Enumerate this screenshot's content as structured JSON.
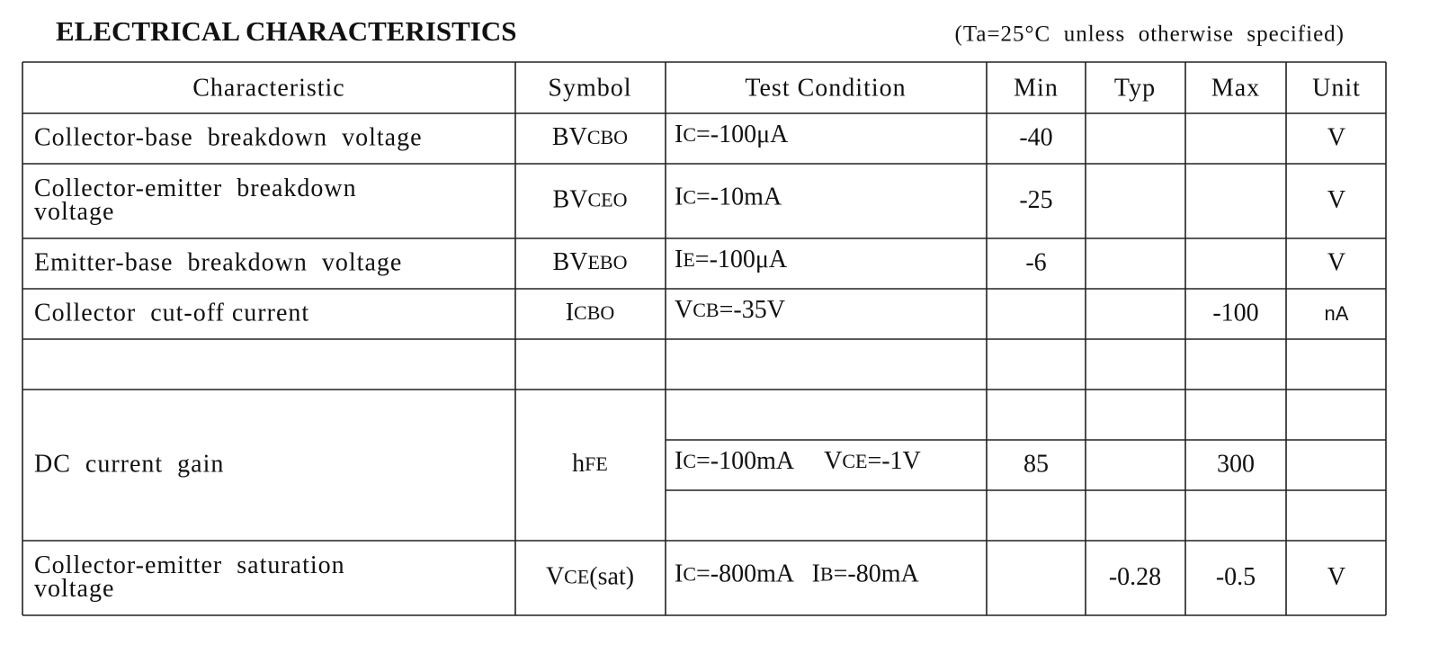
{
  "header": {
    "title": "ELECTRICAL CHARACTERISTICS",
    "note": "(Ta=25°C  unless  otherwise  specified)"
  },
  "table": {
    "columns": [
      "Characteristic",
      "Symbol",
      "Test Condition",
      "Min",
      "Typ",
      "Max",
      "Unit"
    ],
    "rows": [
      {
        "characteristic": [
          "Collector-base  breakdown  voltage"
        ],
        "symbol": [
          "BV",
          "CBO"
        ],
        "condition": [
          "I",
          "C",
          "=-100μA"
        ],
        "min": "-40",
        "unit": "V"
      },
      {
        "characteristic": [
          "Collector-emitter  breakdown",
          "voltage"
        ],
        "symbol": [
          "BV",
          "CEO"
        ],
        "condition": [
          "I",
          "C",
          "=-10mA"
        ],
        "min": "-25",
        "unit": "V"
      },
      {
        "characteristic": [
          "Emitter-base  breakdown  voltage"
        ],
        "symbol": [
          "BV",
          "EBO"
        ],
        "condition": [
          "I",
          "E",
          "=-100μA"
        ],
        "min": "-6",
        "unit": "V"
      },
      {
        "characteristic": [
          "Collector  cut-off current"
        ],
        "symbol": [
          "I",
          "CBO"
        ],
        "condition": [
          "V",
          "CB",
          "=-35V"
        ],
        "max": "-100",
        "unit": "nA"
      },
      {
        "characteristic": [
          "DC  current  gain"
        ],
        "symbol": [
          "h",
          "FE"
        ],
        "condition": [
          "I",
          "C",
          "=-100mA     V",
          "CE",
          "=-1V"
        ],
        "min": "85",
        "max": "300"
      },
      {
        "characteristic": [
          "Collector-emitter  saturation",
          "voltage"
        ],
        "symbol": [
          "V",
          "CE",
          "(sat)"
        ],
        "condition": [
          "I",
          "C",
          "=-800mA   I",
          "B",
          "=-80mA"
        ],
        "typ": "-0.28",
        "max": "-0.5",
        "unit": "V"
      }
    ]
  }
}
